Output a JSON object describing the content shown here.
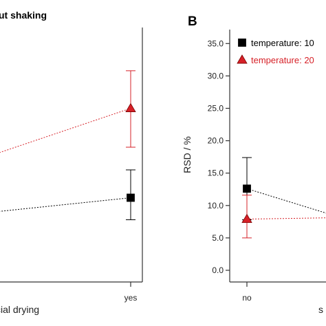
{
  "chart_data": [
    {
      "panel": "A",
      "type": "line",
      "title": "…ut shaking",
      "xlabel": "…cial drying",
      "categories": [
        "no",
        "yes"
      ],
      "visible_tick_labels": [
        "yes"
      ],
      "series": [
        {
          "name": "temperature: 10",
          "color": "#000000",
          "marker": "square",
          "values": [
            7.5,
            11.2
          ],
          "error_low": [
            null,
            7.8
          ],
          "error_high": [
            null,
            15.5
          ]
        },
        {
          "name": "temperature: 20",
          "color": "#d62027",
          "marker": "triangle",
          "values": [
            13.0,
            25.0
          ],
          "error_low": [
            null,
            19.0
          ],
          "error_high": [
            null,
            30.8
          ]
        }
      ]
    },
    {
      "panel": "B",
      "type": "line",
      "ylabel": "RSD / %",
      "ylim": [
        0,
        35
      ],
      "yticks": [
        "0.0",
        "5.0",
        "10.0",
        "15.0",
        "20.0",
        "25.0",
        "30.0",
        "35.0"
      ],
      "categories": [
        "no",
        "s…"
      ],
      "legend": {
        "placement": "top-left",
        "entries": [
          "temperature: 10",
          "temperature: 20"
        ]
      },
      "series": [
        {
          "name": "temperature: 10",
          "color": "#000000",
          "marker": "square",
          "values": [
            12.6,
            8.8
          ],
          "error_low": [
            7.8,
            null
          ],
          "error_high": [
            17.4,
            null
          ]
        },
        {
          "name": "temperature: 20",
          "color": "#d62027",
          "marker": "triangle",
          "values": [
            7.9,
            8.1
          ],
          "error_low": [
            5.0,
            null
          ],
          "error_high": [
            11.6,
            null
          ]
        }
      ]
    }
  ]
}
